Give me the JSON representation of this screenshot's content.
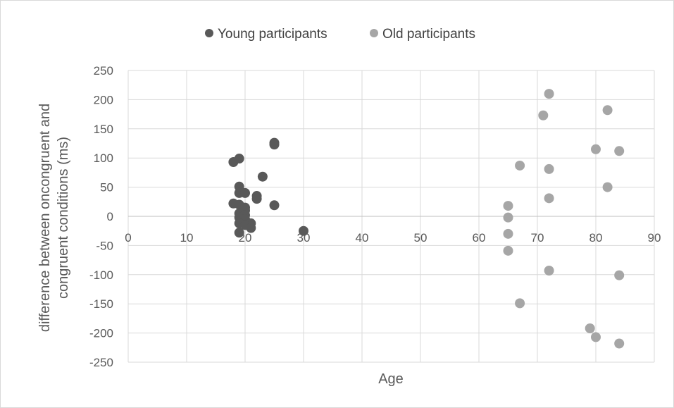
{
  "chart_data": {
    "type": "scatter",
    "title": "",
    "xlabel": "Age",
    "ylabel": "difference between oncongruent and congruent conditions (ms)",
    "xlim": [
      0,
      90
    ],
    "ylim": [
      -250,
      250
    ],
    "x_ticks": [
      0,
      10,
      20,
      30,
      40,
      50,
      60,
      70,
      80,
      90
    ],
    "y_ticks": [
      250,
      200,
      150,
      100,
      50,
      0,
      -50,
      -100,
      -150,
      -200,
      -250
    ],
    "grid": true,
    "legend_position": "top",
    "series": [
      {
        "name": "Young participants",
        "color": "#595959",
        "points": [
          [
            18,
            93
          ],
          [
            19,
            99
          ],
          [
            19,
            51
          ],
          [
            19,
            40
          ],
          [
            20,
            40
          ],
          [
            18,
            22
          ],
          [
            19,
            20
          ],
          [
            20,
            15
          ],
          [
            20,
            10
          ],
          [
            19,
            5
          ],
          [
            20,
            2
          ],
          [
            19,
            -2
          ],
          [
            20,
            -5
          ],
          [
            21,
            -12
          ],
          [
            19,
            -12
          ],
          [
            20,
            -15
          ],
          [
            21,
            -20
          ],
          [
            19,
            -28
          ],
          [
            22,
            35
          ],
          [
            22,
            30
          ],
          [
            23,
            68
          ],
          [
            25,
            126
          ],
          [
            25,
            123
          ],
          [
            25,
            19
          ],
          [
            30,
            -25
          ]
        ]
      },
      {
        "name": "Old participants",
        "color": "#a6a6a6",
        "points": [
          [
            72,
            210
          ],
          [
            71,
            173
          ],
          [
            82,
            182
          ],
          [
            80,
            115
          ],
          [
            84,
            112
          ],
          [
            67,
            87
          ],
          [
            72,
            81
          ],
          [
            82,
            50
          ],
          [
            72,
            31
          ],
          [
            65,
            18
          ],
          [
            65,
            -2
          ],
          [
            65,
            -30
          ],
          [
            65,
            -59
          ],
          [
            72,
            -93
          ],
          [
            84,
            -101
          ],
          [
            67,
            -149
          ],
          [
            79,
            -192
          ],
          [
            80,
            -207
          ],
          [
            84,
            -218
          ]
        ]
      }
    ]
  }
}
